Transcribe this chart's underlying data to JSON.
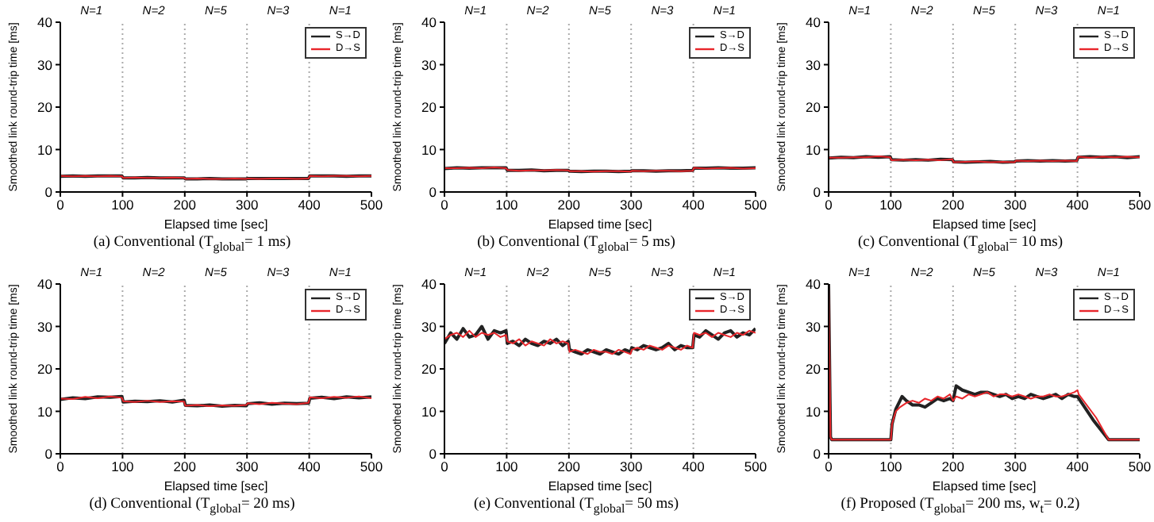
{
  "chart_data": [
    {
      "type": "line",
      "title": "(a) Conventional (T$_{global}$= 1 ms)",
      "xlabel": "Elapsed time [sec]",
      "ylabel": "Smoothed link round-trip time [ms]",
      "x": [
        0,
        20,
        40,
        60,
        80,
        99,
        101,
        120,
        140,
        160,
        180,
        199,
        201,
        220,
        240,
        260,
        280,
        299,
        301,
        320,
        340,
        360,
        380,
        399,
        401,
        420,
        440,
        460,
        480,
        500
      ],
      "xlim": [
        0,
        500
      ],
      "xticks": [
        0,
        100,
        200,
        300,
        400,
        500
      ],
      "ylim": [
        0,
        40
      ],
      "yticks": [
        0,
        10,
        20,
        30,
        40
      ],
      "legend": "top right",
      "series": [
        {
          "name": "S→D",
          "color": "#222222",
          "values": [
            3.7,
            3.8,
            3.7,
            3.8,
            3.8,
            3.8,
            3.3,
            3.3,
            3.4,
            3.3,
            3.3,
            3.3,
            3.1,
            3.1,
            3.2,
            3.1,
            3.1,
            3.1,
            3.2,
            3.2,
            3.2,
            3.2,
            3.2,
            3.2,
            3.8,
            3.8,
            3.8,
            3.7,
            3.8,
            3.8
          ]
        },
        {
          "name": "D→S",
          "color": "#e8262b",
          "values": [
            3.8,
            3.7,
            3.8,
            3.7,
            3.8,
            3.7,
            3.3,
            3.4,
            3.3,
            3.3,
            3.4,
            3.3,
            3.1,
            3.2,
            3.1,
            3.1,
            3.2,
            3.1,
            3.2,
            3.1,
            3.2,
            3.2,
            3.1,
            3.2,
            3.8,
            3.7,
            3.8,
            3.8,
            3.7,
            3.8
          ]
        }
      ],
      "ref_lines": [
        {
          "axis": "x",
          "value": 100,
          "color": "#aaaaaa",
          "line_style": "dotted"
        },
        {
          "axis": "x",
          "value": 200,
          "color": "#aaaaaa",
          "line_style": "dotted"
        },
        {
          "axis": "x",
          "value": 300,
          "color": "#aaaaaa",
          "line_style": "dotted"
        },
        {
          "axis": "x",
          "value": 400,
          "color": "#aaaaaa",
          "line_style": "dotted"
        }
      ],
      "annotations": [
        "N=1",
        "N=2",
        "N=5",
        "N=3",
        "N=1"
      ]
    },
    {
      "type": "line",
      "title": "(b) Conventional (T$_{global}$= 5 ms)",
      "xlabel": "Elapsed time [sec]",
      "ylabel": "Smoothed link round-trip time [ms]",
      "x": [
        0,
        20,
        40,
        60,
        80,
        99,
        101,
        120,
        140,
        160,
        180,
        199,
        201,
        220,
        240,
        260,
        280,
        299,
        301,
        320,
        340,
        360,
        380,
        399,
        401,
        420,
        440,
        460,
        480,
        500
      ],
      "xlim": [
        0,
        500
      ],
      "xticks": [
        0,
        100,
        200,
        300,
        400,
        500
      ],
      "ylim": [
        0,
        40
      ],
      "yticks": [
        0,
        10,
        20,
        30,
        40
      ],
      "legend": "top right",
      "series": [
        {
          "name": "S→D",
          "color": "#222222",
          "values": [
            5.5,
            5.7,
            5.6,
            5.7,
            5.7,
            5.7,
            5.1,
            5.1,
            5.2,
            5.0,
            5.1,
            5.1,
            4.9,
            4.8,
            4.9,
            4.9,
            4.8,
            4.9,
            5.0,
            5.0,
            4.9,
            5.0,
            5.0,
            5.1,
            5.6,
            5.6,
            5.7,
            5.6,
            5.6,
            5.7
          ]
        },
        {
          "name": "D→S",
          "color": "#e8262b",
          "values": [
            5.6,
            5.6,
            5.7,
            5.6,
            5.8,
            5.6,
            5.2,
            5.0,
            5.1,
            5.1,
            5.2,
            5.1,
            4.9,
            4.9,
            4.8,
            4.9,
            4.9,
            4.8,
            5.0,
            4.9,
            5.0,
            5.0,
            4.9,
            5.0,
            5.7,
            5.5,
            5.6,
            5.7,
            5.5,
            5.6
          ]
        }
      ],
      "ref_lines": [
        {
          "axis": "x",
          "value": 100,
          "color": "#aaaaaa",
          "line_style": "dotted"
        },
        {
          "axis": "x",
          "value": 200,
          "color": "#aaaaaa",
          "line_style": "dotted"
        },
        {
          "axis": "x",
          "value": 300,
          "color": "#aaaaaa",
          "line_style": "dotted"
        },
        {
          "axis": "x",
          "value": 400,
          "color": "#aaaaaa",
          "line_style": "dotted"
        }
      ],
      "annotations": [
        "N=1",
        "N=2",
        "N=5",
        "N=3",
        "N=1"
      ]
    },
    {
      "type": "line",
      "title": "(c) Conventional (T$_{global}$= 10 ms)",
      "xlabel": "Elapsed time [sec]",
      "ylabel": "Smoothed link round-trip time [ms]",
      "x": [
        0,
        20,
        40,
        60,
        80,
        99,
        101,
        120,
        140,
        160,
        180,
        199,
        201,
        220,
        240,
        260,
        280,
        299,
        301,
        320,
        340,
        360,
        380,
        399,
        401,
        420,
        440,
        460,
        480,
        500
      ],
      "xlim": [
        0,
        500
      ],
      "xticks": [
        0,
        100,
        200,
        300,
        400,
        500
      ],
      "ylim": [
        0,
        40
      ],
      "yticks": [
        0,
        10,
        20,
        30,
        40
      ],
      "legend": "top right",
      "series": [
        {
          "name": "S→D",
          "color": "#222222",
          "values": [
            8.0,
            8.2,
            8.1,
            8.3,
            8.2,
            8.3,
            7.6,
            7.5,
            7.6,
            7.5,
            7.7,
            7.6,
            7.1,
            7.0,
            7.1,
            7.2,
            7.0,
            7.1,
            7.3,
            7.4,
            7.3,
            7.4,
            7.3,
            7.4,
            8.2,
            8.3,
            8.2,
            8.3,
            8.1,
            8.3
          ]
        },
        {
          "name": "D→S",
          "color": "#e8262b",
          "values": [
            8.1,
            8.1,
            8.2,
            8.2,
            8.4,
            8.2,
            7.5,
            7.6,
            7.5,
            7.6,
            7.5,
            7.7,
            7.0,
            7.1,
            7.2,
            7.0,
            7.1,
            7.0,
            7.4,
            7.3,
            7.4,
            7.3,
            7.4,
            7.3,
            8.3,
            8.1,
            8.3,
            8.2,
            8.3,
            8.2
          ]
        }
      ],
      "ref_lines": [
        {
          "axis": "x",
          "value": 100,
          "color": "#aaaaaa",
          "line_style": "dotted"
        },
        {
          "axis": "x",
          "value": 200,
          "color": "#aaaaaa",
          "line_style": "dotted"
        },
        {
          "axis": "x",
          "value": 300,
          "color": "#aaaaaa",
          "line_style": "dotted"
        },
        {
          "axis": "x",
          "value": 400,
          "color": "#aaaaaa",
          "line_style": "dotted"
        }
      ],
      "annotations": [
        "N=1",
        "N=2",
        "N=5",
        "N=3",
        "N=1"
      ]
    },
    {
      "type": "line",
      "title": "(d) Conventional (T$_{global}$= 20 ms)",
      "xlabel": "Elapsed time [sec]",
      "ylabel": "Smoothed link round-trip time [ms]",
      "x": [
        0,
        20,
        40,
        60,
        80,
        99,
        101,
        120,
        140,
        160,
        180,
        199,
        201,
        220,
        240,
        260,
        280,
        299,
        301,
        320,
        340,
        360,
        380,
        399,
        401,
        420,
        440,
        460,
        480,
        500
      ],
      "xlim": [
        0,
        500
      ],
      "xticks": [
        0,
        100,
        200,
        300,
        400,
        500
      ],
      "ylim": [
        0,
        40
      ],
      "yticks": [
        0,
        10,
        20,
        30,
        40
      ],
      "legend": "top right",
      "series": [
        {
          "name": "S→D",
          "color": "#222222",
          "values": [
            12.8,
            13.2,
            13.0,
            13.4,
            13.3,
            13.5,
            12.2,
            12.4,
            12.3,
            12.5,
            12.2,
            12.6,
            11.4,
            11.3,
            11.5,
            11.2,
            11.4,
            11.3,
            11.8,
            12.0,
            11.7,
            11.9,
            11.8,
            11.9,
            13.1,
            13.3,
            13.0,
            13.4,
            13.2,
            13.4
          ]
        },
        {
          "name": "D→S",
          "color": "#e8262b",
          "values": [
            13.0,
            12.9,
            13.4,
            13.1,
            13.5,
            13.2,
            12.4,
            12.2,
            12.5,
            12.2,
            12.4,
            12.3,
            11.3,
            11.5,
            11.2,
            11.4,
            11.3,
            11.5,
            11.9,
            11.7,
            12.0,
            11.8,
            11.7,
            12.0,
            13.3,
            13.1,
            13.4,
            13.2,
            13.5,
            13.1
          ]
        }
      ],
      "ref_lines": [
        {
          "axis": "x",
          "value": 100,
          "color": "#aaaaaa",
          "line_style": "dotted"
        },
        {
          "axis": "x",
          "value": 200,
          "color": "#aaaaaa",
          "line_style": "dotted"
        },
        {
          "axis": "x",
          "value": 300,
          "color": "#aaaaaa",
          "line_style": "dotted"
        },
        {
          "axis": "x",
          "value": 400,
          "color": "#aaaaaa",
          "line_style": "dotted"
        }
      ],
      "annotations": [
        "N=1",
        "N=2",
        "N=5",
        "N=3",
        "N=1"
      ]
    },
    {
      "type": "line",
      "title": "(e) Conventional (T$_{global}$= 50 ms)",
      "xlabel": "Elapsed time [sec]",
      "ylabel": "Smoothed link round-trip time [ms]",
      "x": [
        0,
        10,
        20,
        30,
        40,
        50,
        60,
        70,
        80,
        90,
        99,
        101,
        110,
        120,
        130,
        140,
        150,
        160,
        170,
        180,
        190,
        199,
        201,
        210,
        220,
        230,
        240,
        250,
        260,
        270,
        280,
        290,
        299,
        301,
        310,
        320,
        330,
        340,
        350,
        360,
        370,
        380,
        390,
        399,
        401,
        410,
        420,
        430,
        440,
        450,
        460,
        470,
        480,
        490,
        500
      ],
      "xlim": [
        0,
        500
      ],
      "xticks": [
        0,
        100,
        200,
        300,
        400,
        500
      ],
      "ylim": [
        0,
        40
      ],
      "yticks": [
        0,
        10,
        20,
        30,
        40
      ],
      "legend": "top right",
      "series": [
        {
          "name": "S→D",
          "color": "#222222",
          "values": [
            26,
            28.5,
            27,
            29.5,
            27.5,
            28,
            30,
            27,
            29,
            28.5,
            29,
            26,
            26.5,
            25.5,
            27,
            26,
            25.5,
            26.5,
            26,
            27,
            25.5,
            26.5,
            24.5,
            24,
            23.5,
            24.5,
            24,
            23.5,
            24.5,
            24,
            23.5,
            24.5,
            24,
            25,
            24.5,
            25.5,
            25,
            24.5,
            25,
            26,
            24.5,
            25.5,
            25,
            25,
            28,
            27.5,
            29,
            28,
            27,
            28.5,
            29,
            27.5,
            28.5,
            28,
            29.5
          ]
        },
        {
          "name": "D→S",
          "color": "#e8262b",
          "values": [
            27,
            28,
            28.5,
            27.5,
            29,
            27.5,
            28.5,
            28,
            28.5,
            27.5,
            28,
            26.5,
            26,
            27,
            25.5,
            26.5,
            26,
            25.5,
            27,
            26,
            26.5,
            26,
            24,
            24.5,
            24,
            23.5,
            24.5,
            24,
            24,
            23.5,
            24.5,
            24,
            23.5,
            24.5,
            25,
            24.5,
            25.5,
            25,
            24.5,
            25.5,
            25,
            24.5,
            25.5,
            25,
            28.5,
            28,
            28.5,
            27.5,
            28.5,
            28,
            27.5,
            28.5,
            28,
            29,
            28.5
          ]
        }
      ],
      "ref_lines": [
        {
          "axis": "x",
          "value": 100,
          "color": "#aaaaaa",
          "line_style": "dotted"
        },
        {
          "axis": "x",
          "value": 200,
          "color": "#aaaaaa",
          "line_style": "dotted"
        },
        {
          "axis": "x",
          "value": 300,
          "color": "#aaaaaa",
          "line_style": "dotted"
        },
        {
          "axis": "x",
          "value": 400,
          "color": "#aaaaaa",
          "line_style": "dotted"
        }
      ],
      "annotations": [
        "N=1",
        "N=2",
        "N=5",
        "N=3",
        "N=1"
      ]
    },
    {
      "type": "line",
      "title": "(f) Proposed (T$_{global}$= 200 ms, w$_{t}$= 0.2)",
      "xlabel": "Elapsed time [sec]",
      "ylabel": "Smoothed link round-trip time [ms]",
      "xlim": [
        0,
        500
      ],
      "xticks": [
        0,
        100,
        200,
        300,
        400,
        500
      ],
      "ylim": [
        0,
        40
      ],
      "yticks": [
        0,
        10,
        20,
        30,
        40
      ],
      "legend": "top right",
      "series": [
        {
          "name": "S→D",
          "color": "#222222",
          "x": [
            0,
            3,
            5,
            50,
            100,
            102,
            108,
            113,
            118,
            125,
            135,
            145,
            155,
            165,
            175,
            185,
            195,
            200,
            205,
            215,
            225,
            235,
            245,
            255,
            265,
            275,
            285,
            295,
            305,
            315,
            325,
            335,
            345,
            355,
            365,
            375,
            385,
            395,
            400,
            425,
            450,
            500
          ],
          "values": [
            40,
            4,
            3.3,
            3.3,
            3.3,
            7,
            10.5,
            12,
            13.5,
            12.5,
            11.5,
            11.5,
            11,
            12,
            13,
            12.5,
            13,
            12.5,
            16,
            15,
            14.5,
            14,
            14.5,
            14.5,
            14,
            13.5,
            14,
            13,
            13.5,
            13,
            14,
            13.5,
            13,
            13.5,
            14,
            13,
            14,
            13.5,
            13.5,
            8,
            3.3,
            3.3
          ]
        },
        {
          "name": "D→S",
          "color": "#e8262b",
          "x": [
            0,
            3,
            5,
            50,
            100,
            102,
            108,
            115,
            125,
            135,
            145,
            155,
            165,
            175,
            185,
            195,
            200,
            205,
            215,
            225,
            235,
            245,
            255,
            265,
            275,
            285,
            295,
            305,
            315,
            325,
            335,
            345,
            355,
            365,
            375,
            385,
            395,
            400,
            402,
            430,
            450,
            500
          ],
          "values": [
            40,
            4,
            3.3,
            3.3,
            3.3,
            7,
            10,
            11,
            12,
            12.5,
            12,
            13,
            12.5,
            13.5,
            13,
            14,
            12.5,
            13.5,
            13,
            14,
            13.5,
            14,
            14.5,
            13.5,
            14,
            14,
            13.5,
            14,
            13.5,
            13,
            13.5,
            13.5,
            14,
            13.5,
            13.5,
            14,
            14.5,
            15,
            14,
            8.5,
            3.3,
            3.3
          ]
        }
      ],
      "ref_lines": [
        {
          "axis": "x",
          "value": 100,
          "color": "#aaaaaa",
          "line_style": "dotted"
        },
        {
          "axis": "x",
          "value": 200,
          "color": "#aaaaaa",
          "line_style": "dotted"
        },
        {
          "axis": "x",
          "value": 300,
          "color": "#aaaaaa",
          "line_style": "dotted"
        },
        {
          "axis": "x",
          "value": 400,
          "color": "#aaaaaa",
          "line_style": "dotted"
        }
      ],
      "annotations": [
        "N=1",
        "N=2",
        "N=5",
        "N=3",
        "N=1"
      ]
    }
  ]
}
